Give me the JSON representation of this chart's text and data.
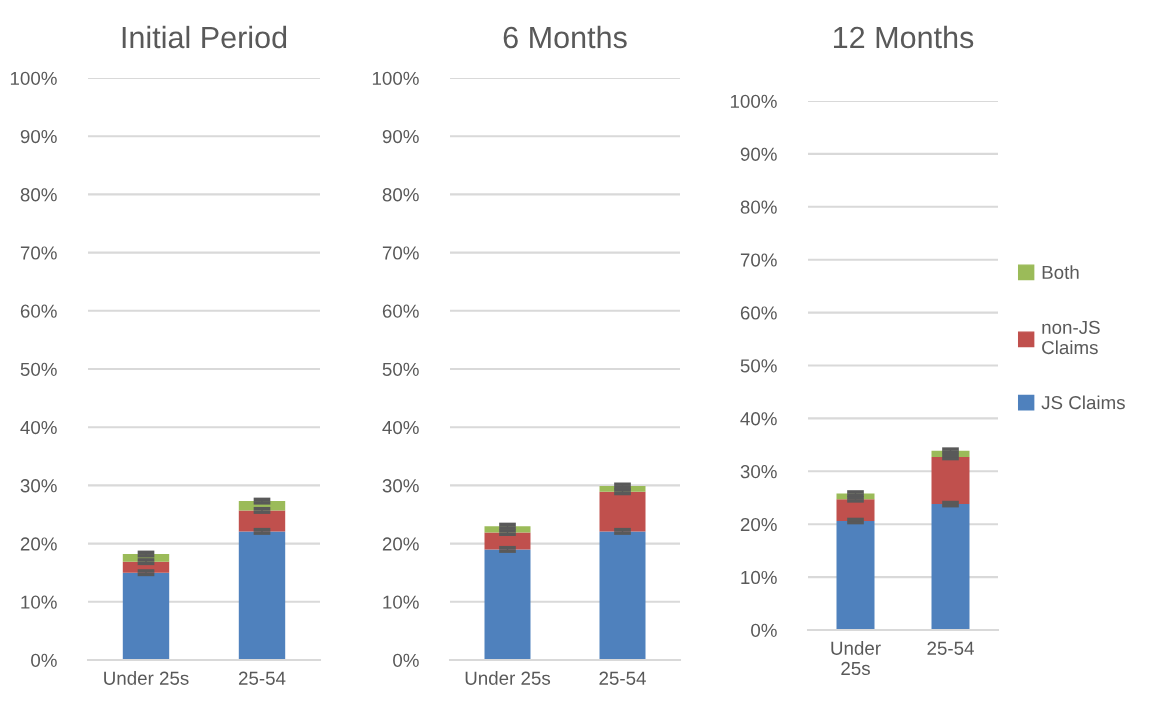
{
  "chart_data": [
    {
      "type": "bar",
      "title": "Initial Period",
      "categories": [
        "Under 25s",
        "25-54"
      ],
      "stacked": true,
      "ylim": [
        0,
        100
      ],
      "yticks": [
        {
          "value": 0,
          "label": "0%"
        },
        {
          "value": 10,
          "label": "10%"
        },
        {
          "value": 20,
          "label": "20%"
        },
        {
          "value": 30,
          "label": "30%"
        },
        {
          "value": 40,
          "label": "40%"
        },
        {
          "value": 50,
          "label": "50%"
        },
        {
          "value": 60,
          "label": "60%"
        },
        {
          "value": 70,
          "label": "70%"
        },
        {
          "value": 80,
          "label": "80%"
        },
        {
          "value": 90,
          "label": "90%"
        },
        {
          "value": 100,
          "label": "100%"
        }
      ],
      "grid": "y",
      "legend": false,
      "series": [
        {
          "color": "#4f81bd",
          "values": [
            15.0,
            22.1
          ],
          "errors": [
            0.3,
            0.3
          ]
        },
        {
          "color": "#c0504d",
          "values": [
            1.9,
            3.6
          ],
          "errors": [
            0.3,
            0.3
          ]
        },
        {
          "color": "#9bbb59",
          "values": [
            1.3,
            1.6
          ],
          "errors": [
            0.3,
            0.3
          ]
        }
      ]
    },
    {
      "type": "bar",
      "title": "6 Months",
      "categories": [
        "Under 25s",
        "25-54"
      ],
      "stacked": true,
      "ylim": [
        0,
        100
      ],
      "yticks": [
        {
          "value": 0,
          "label": "0%"
        },
        {
          "value": 10,
          "label": "10%"
        },
        {
          "value": 20,
          "label": "20%"
        },
        {
          "value": 30,
          "label": "30%"
        },
        {
          "value": 40,
          "label": "40%"
        },
        {
          "value": 50,
          "label": "50%"
        },
        {
          "value": 60,
          "label": "60%"
        },
        {
          "value": 70,
          "label": "70%"
        },
        {
          "value": 80,
          "label": "80%"
        },
        {
          "value": 90,
          "label": "90%"
        },
        {
          "value": 100,
          "label": "100%"
        }
      ],
      "grid": "y",
      "legend": false,
      "series": [
        {
          "color": "#4f81bd",
          "values": [
            19.0,
            22.1
          ],
          "errors": [
            0.3,
            0.3
          ]
        },
        {
          "color": "#c0504d",
          "values": [
            2.9,
            6.8
          ],
          "errors": [
            0.3,
            0.3
          ]
        },
        {
          "color": "#9bbb59",
          "values": [
            1.1,
            1.0
          ],
          "errors": [
            0.3,
            0.3
          ]
        }
      ]
    },
    {
      "type": "bar",
      "title": "12 Months",
      "categories": [
        "Under\n25s",
        "25-54"
      ],
      "stacked": true,
      "ylim": [
        0,
        100
      ],
      "yticks": [
        {
          "value": 0,
          "label": "0%"
        },
        {
          "value": 10,
          "label": "10%"
        },
        {
          "value": 20,
          "label": "20%"
        },
        {
          "value": 30,
          "label": "30%"
        },
        {
          "value": 40,
          "label": "40%"
        },
        {
          "value": 50,
          "label": "50%"
        },
        {
          "value": 60,
          "label": "60%"
        },
        {
          "value": 70,
          "label": "70%"
        },
        {
          "value": 80,
          "label": "80%"
        },
        {
          "value": 90,
          "label": "90%"
        },
        {
          "value": 100,
          "label": "100%"
        }
      ],
      "grid": "y",
      "legend": "right",
      "series": [
        {
          "name": "JS Claims",
          "color": "#4f81bd",
          "values": [
            20.6,
            23.8
          ],
          "errors": [
            0.3,
            0.3
          ]
        },
        {
          "name": "non-JS\nClaims",
          "color": "#c0504d",
          "values": [
            4.1,
            8.9
          ],
          "errors": [
            0.3,
            0.3
          ]
        },
        {
          "name": "Both",
          "color": "#9bbb59",
          "values": [
            1.1,
            1.2
          ],
          "errors": [
            0.3,
            0.3
          ]
        }
      ]
    }
  ]
}
